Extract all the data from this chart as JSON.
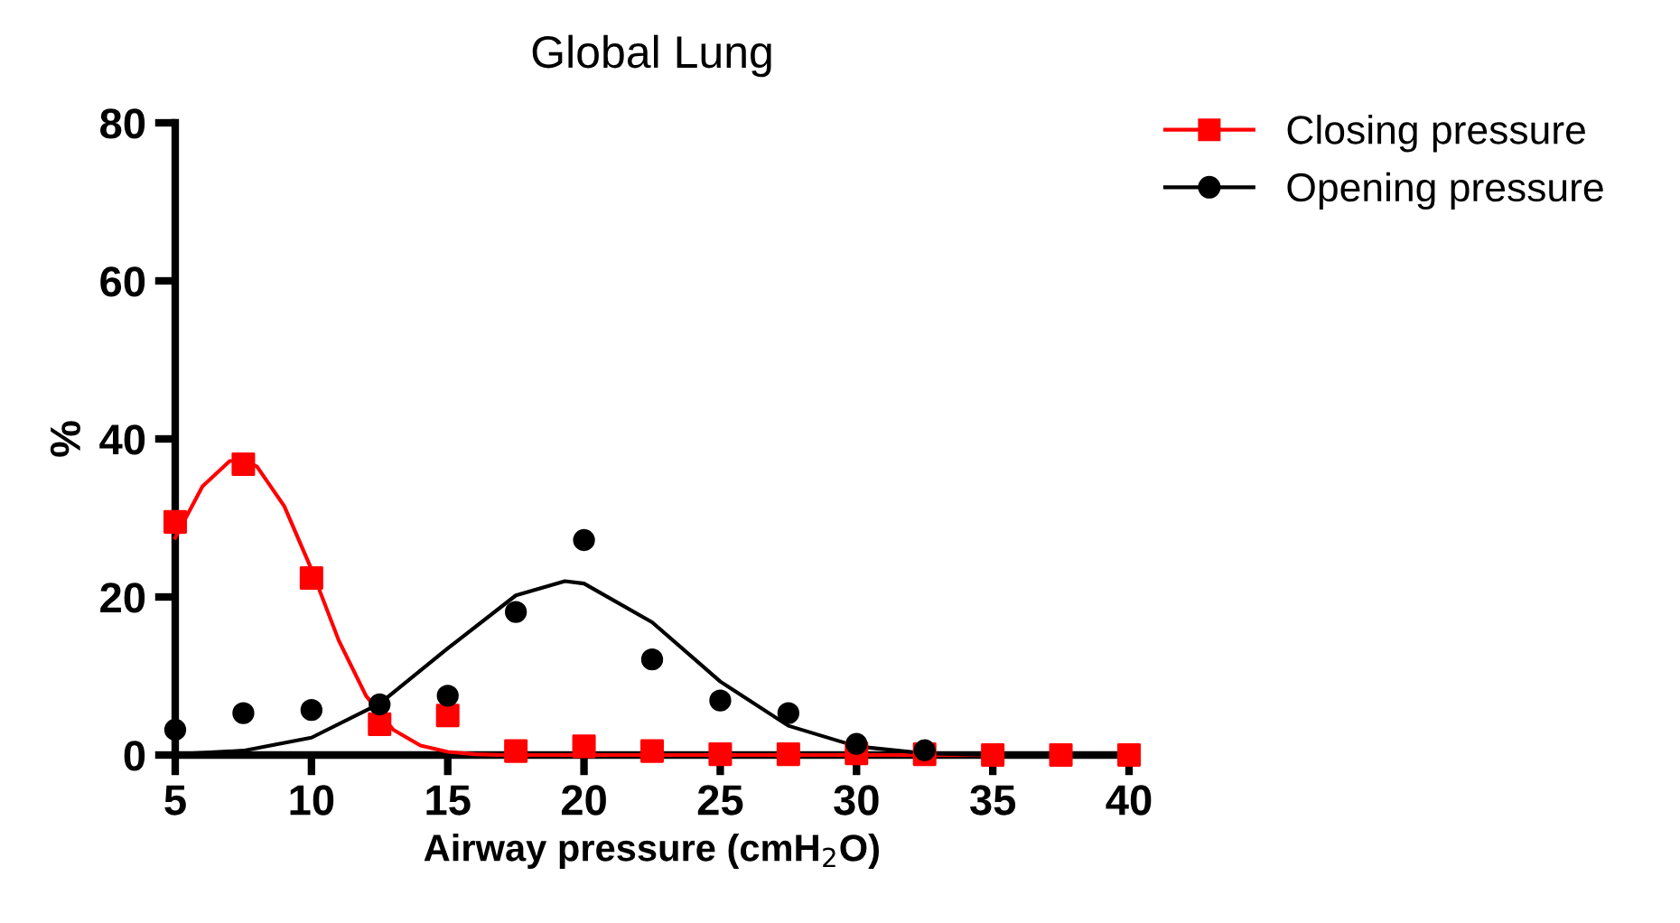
{
  "chart_data": {
    "type": "scatter",
    "title": "Global Lung",
    "xlabel": "Airway pressure (cmH$_{2}$O)",
    "ylabel": "%",
    "xlim": [
      5,
      40
    ],
    "xticks": [
      5,
      10,
      15,
      20,
      25,
      30,
      35,
      40
    ],
    "ylim": [
      0,
      80
    ],
    "yticks": [
      0,
      20,
      40,
      60,
      80
    ],
    "grid": false,
    "legend": "top right",
    "x": [
      5,
      7.5,
      10,
      12.5,
      15,
      17.5,
      20,
      22.5,
      25,
      27.5,
      30,
      32.5,
      35,
      37.5,
      40
    ],
    "series": [
      {
        "name": "Closing pressure",
        "color": "#ff0000",
        "marker": "square",
        "values": [
          29.5,
          36.8,
          22.4,
          3.9,
          5.0,
          0.5,
          1.1,
          0.5,
          0.1,
          0.1,
          0.2,
          0.1,
          0,
          0,
          0
        ]
      },
      {
        "name": "Opening pressure",
        "color": "#000000",
        "marker": "circle",
        "values": [
          3.2,
          5.3,
          5.7,
          6.4,
          7.5,
          18.1,
          27.2,
          12.1,
          6.9,
          5.3,
          1.4,
          0.6,
          null,
          null,
          null
        ]
      },
      {
        "type": "line",
        "color": "#ff0000",
        "marker": "none",
        "x": [
          5,
          6,
          7,
          7.5,
          8,
          9,
          10,
          11,
          12,
          13,
          14,
          15,
          16,
          17,
          20,
          25,
          30,
          35,
          40
        ],
        "values": [
          27.5,
          34,
          37.2,
          37.3,
          36.5,
          31.5,
          23.5,
          14.5,
          7.5,
          3.2,
          1.2,
          0.4,
          0.1,
          0,
          0,
          0,
          0,
          0,
          0
        ]
      },
      {
        "type": "line",
        "color": "#000000",
        "marker": "none",
        "x": [
          5,
          7.5,
          10,
          12.5,
          15,
          17.5,
          19.3,
          20,
          22.5,
          25,
          27.5,
          30,
          32.5,
          35,
          40
        ],
        "values": [
          0.1,
          0.55,
          2.2,
          6.5,
          13.5,
          20.2,
          22,
          21.7,
          16.8,
          9.3,
          3.7,
          1.1,
          0.2,
          0,
          0
        ]
      }
    ]
  }
}
